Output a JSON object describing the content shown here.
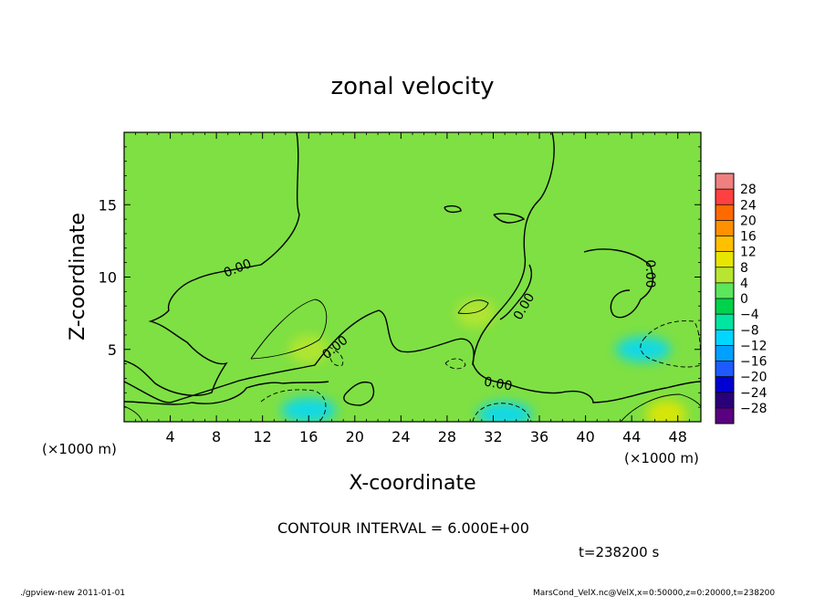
{
  "chart_data": {
    "type": "heatmap",
    "title": "zonal velocity",
    "xlabel": "X-coordinate",
    "ylabel": "Z-coordinate",
    "x_unit_label": "(×1000 m)",
    "y_unit_label": "(×1000 m)",
    "xlim": [
      0,
      50
    ],
    "ylim": [
      0,
      20
    ],
    "x_ticks": [
      4,
      8,
      12,
      16,
      20,
      24,
      28,
      32,
      36,
      40,
      44,
      48
    ],
    "y_ticks": [
      5,
      10,
      15
    ],
    "contour_interval_text": "CONTOUR INTERVAL = 6.000E+00",
    "contour_label": "0.00",
    "time_text": "t=238200 s",
    "colorbar": {
      "labels": [
        "28",
        "24",
        "20",
        "16",
        "12",
        "8",
        "4",
        "0",
        "−4",
        "−8",
        "−12",
        "−16",
        "−20",
        "−24",
        "−28"
      ],
      "colors": [
        "#f08080",
        "#ff4040",
        "#ff6a00",
        "#ff9000",
        "#ffc000",
        "#e6e600",
        "#b8e630",
        "#5ce65c",
        "#00d24b",
        "#00e6a0",
        "#00d7ff",
        "#00a0ff",
        "#1e5aff",
        "#0000d2",
        "#2a0078",
        "#5a0080"
      ]
    },
    "features": [
      {
        "kind": "positive-max",
        "x": 16,
        "z": 5,
        "value": 6
      },
      {
        "kind": "positive-max",
        "x": 30.5,
        "z": 7.5,
        "value": 6
      },
      {
        "kind": "positive-max",
        "x": 47,
        "z": 0.5,
        "value": 12
      },
      {
        "kind": "negative-min",
        "x": 16,
        "z": 0.8,
        "value": -8
      },
      {
        "kind": "negative-min",
        "x": 33,
        "z": 0.5,
        "value": -10
      },
      {
        "kind": "negative-min",
        "x": 45,
        "z": 5,
        "value": -8
      }
    ]
  },
  "footer": {
    "left": "./gpview-new   2011-01-01",
    "right": "MarsCond_VelX.nc@VelX,x=0:50000,z=0:20000,t=238200"
  }
}
